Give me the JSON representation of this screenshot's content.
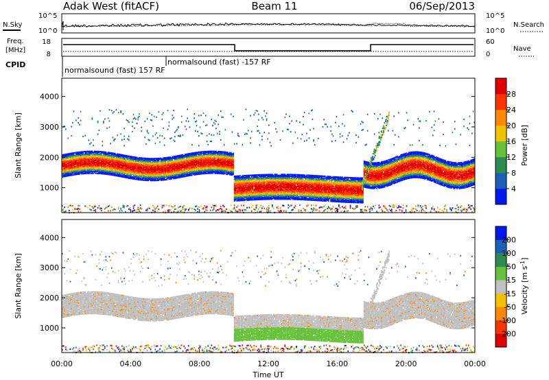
{
  "header": {
    "station": "Adak West (fitACF)",
    "beam": "Beam 11",
    "date": "06/Sep/2013"
  },
  "noise_panel": {
    "left_label": "N.Sky",
    "right_label": "N.Search",
    "tick_top_left": "10^5",
    "tick_bottom_left": "10^0",
    "tick_top_right": "10^5",
    "tick_bottom_right": "10^0"
  },
  "freq_panel": {
    "left_label_1": "Freq.",
    "left_label_2": "[MHz]",
    "right_label": "Nave",
    "tick_top_left": "18",
    "tick_bottom_left": "8",
    "tick_top_right": "60",
    "tick_bottom_right": "0"
  },
  "cpid": {
    "label": "CPID",
    "program_1": "normalsound (fast) 157 RF",
    "program_2": "normalsound (fast) -157 RF"
  },
  "chart_data": [
    {
      "type": "heatmap",
      "panel": "power",
      "ylabel": "Slant Range [km]",
      "xlabel": "",
      "x_ticks": [
        "00:00",
        "04:00",
        "08:00",
        "12:00",
        "16:00",
        "20:00",
        "00:00"
      ],
      "y_ticks": [
        "1000",
        "2000",
        "3000",
        "4000"
      ],
      "ylim": [
        180,
        4600
      ],
      "x_hours": [
        0,
        24
      ],
      "colorbar_label": "Power [dB]",
      "colorbar_ticks": [
        "28",
        "24",
        "20",
        "16",
        "12",
        "8",
        "4"
      ],
      "colorbar_range": [
        0,
        32
      ],
      "colors": [
        "#0018f0",
        "#1b5fb8",
        "#2f8a4f",
        "#66c23a",
        "#f2c200",
        "#ff8a00",
        "#ff3300",
        "#e00000"
      ],
      "regions": [
        {
          "from": 0.0,
          "to": 9.9,
          "range_km": [
            1300,
            2200
          ],
          "peak_db": 28
        },
        {
          "from": 2.0,
          "to": 9.5,
          "range_km": [
            2900,
            3600
          ],
          "peak_db": 6
        },
        {
          "from": 10.0,
          "to": 17.5,
          "range_km": [
            500,
            1600
          ],
          "peak_db": 26
        },
        {
          "from": 10.0,
          "to": 17.0,
          "range_km": [
            1600,
            3500
          ],
          "peak_db": 6
        },
        {
          "from": 17.5,
          "to": 24.0,
          "range_km": [
            1100,
            2400
          ],
          "peak_db": 24
        },
        {
          "from": 17.5,
          "to": 19.5,
          "range_km": [
            1000,
            3600
          ],
          "peak_db": 14
        }
      ]
    },
    {
      "type": "heatmap",
      "panel": "velocity",
      "ylabel": "Slant Range [km]",
      "xlabel": "Time UT",
      "x_ticks": [
        "00:00",
        "04:00",
        "08:00",
        "12:00",
        "16:00",
        "20:00",
        "00:00"
      ],
      "y_ticks": [
        "1000",
        "2000",
        "3000",
        "4000"
      ],
      "ylim": [
        180,
        4600
      ],
      "x_hours": [
        0,
        24
      ],
      "colorbar_label": "Velocity [m s^-1]",
      "colorbar_ticks": [
        "200",
        "100",
        "50",
        "15",
        "-15",
        "-50",
        "-100",
        "-200"
      ],
      "colorbar_range": [
        -250,
        250
      ],
      "colors": [
        "#e00000",
        "#ff3300",
        "#ff8a00",
        "#f2c200",
        "#c0c0c0",
        "#66c23a",
        "#2f8a4f",
        "#1b5fb8",
        "#0018f0"
      ],
      "regions": [
        {
          "from": 0.0,
          "to": 9.9,
          "range_km": [
            1300,
            2200
          ],
          "velocity": 0
        },
        {
          "from": 10.0,
          "to": 17.5,
          "range_km": [
            500,
            1600
          ],
          "velocity": 30
        },
        {
          "from": 17.5,
          "to": 24.0,
          "range_km": [
            1100,
            2400
          ],
          "velocity": 0
        }
      ]
    }
  ]
}
